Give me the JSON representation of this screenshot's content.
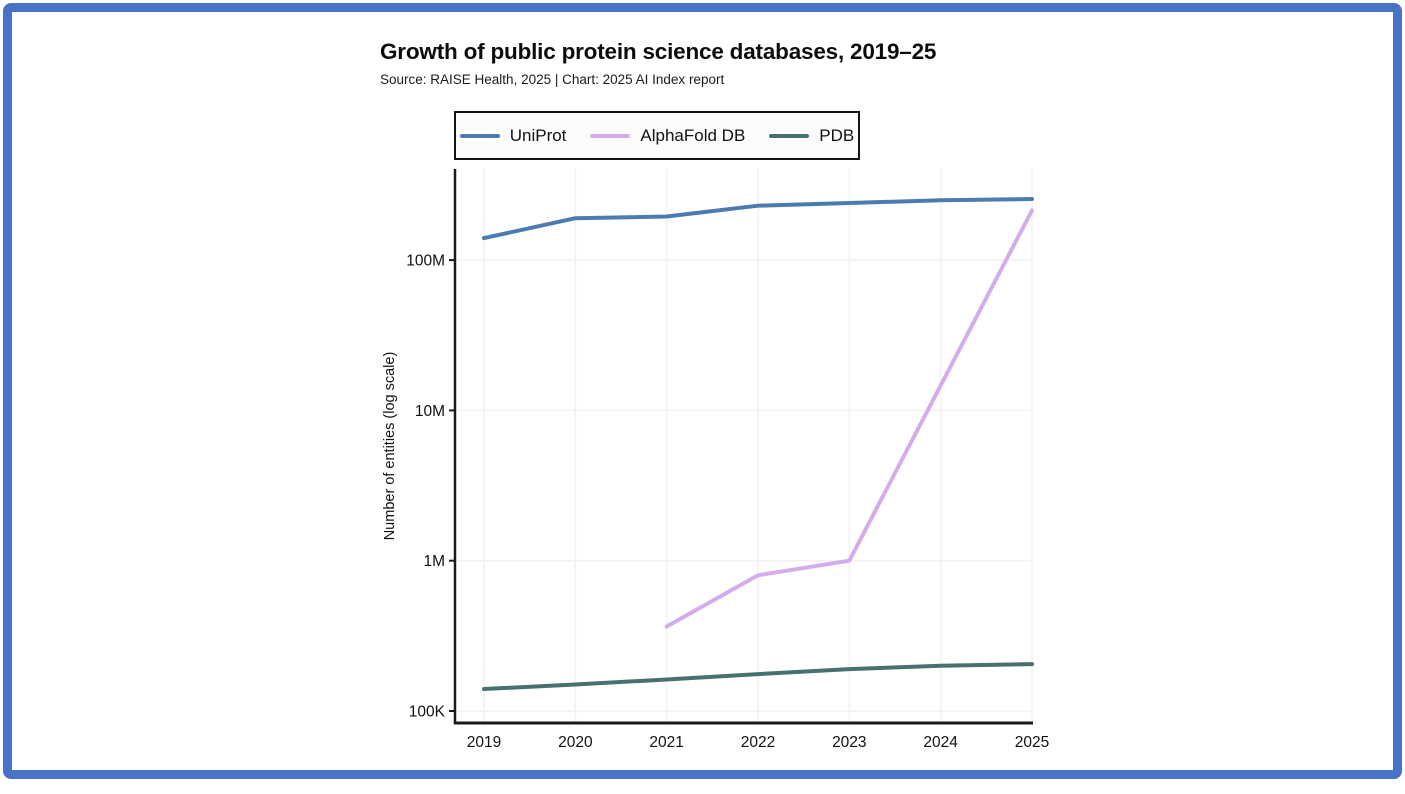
{
  "chart_data": {
    "type": "line",
    "title": "Growth of public protein science databases, 2019–25",
    "subtitle": "Source: RAISE Health, 2025 | Chart: 2025 AI Index report",
    "ylabel": "Number of entities (log scale)",
    "yscale": "log",
    "grid": true,
    "legend_position": "top-center",
    "x": [
      "2019",
      "2020",
      "2021",
      "2022",
      "2023",
      "2024",
      "2025"
    ],
    "series": [
      {
        "name": "UniProt",
        "color": "#4c7bb0",
        "values": [
          140000000,
          190000000,
          195000000,
          230000000,
          240000000,
          250000000,
          255000000
        ]
      },
      {
        "name": "AlphaFold DB",
        "color": "#d5aceb",
        "values": [
          null,
          null,
          365000,
          800000,
          1000000,
          null,
          214000000
        ]
      },
      {
        "name": "PDB",
        "color": "#47706f",
        "values": [
          140000,
          150000,
          162000,
          176000,
          190000,
          200000,
          205000
        ]
      }
    ],
    "yticks": [
      {
        "value": 100000,
        "label": "100K"
      },
      {
        "value": 1000000,
        "label": "1M"
      },
      {
        "value": 10000000,
        "label": "10M"
      },
      {
        "value": 100000000,
        "label": "100M"
      }
    ],
    "ylim": [
      83000,
      400000000
    ],
    "frame_color": "#4673c5",
    "axis_color": "#1a1a1a",
    "gridline_color": "#f1f1f1"
  }
}
